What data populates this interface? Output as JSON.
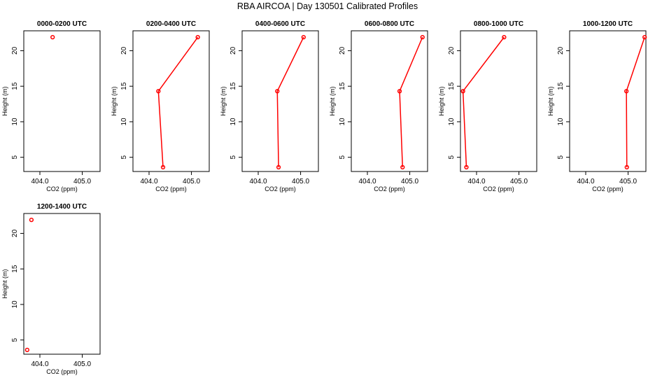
{
  "page": {
    "title": "RBA AIRCOA |  Day 130501  Calibrated Profiles"
  },
  "style": {
    "line_color": "#ff0000",
    "point_color": "#ff0000",
    "axis_color": "#000000",
    "background": "#ffffff"
  },
  "chart_data": [
    {
      "type": "line",
      "title": "0000-0200 UTC",
      "xlabel": "CO2 (ppm)",
      "ylabel": "Height (m)",
      "xlim": [
        403.62,
        405.42
      ],
      "ylim": [
        3,
        22.8
      ],
      "xticks": [
        404.0,
        405.0
      ],
      "xticklabels": [
        "404.0",
        "405.0"
      ],
      "yticks": [
        5,
        10,
        15,
        20
      ],
      "yticklabels": [
        "5",
        "10",
        "15",
        "20"
      ],
      "points": [
        {
          "x": 404.3,
          "y": 21.9
        }
      ],
      "connect": false,
      "grid": false
    },
    {
      "type": "line",
      "title": "0200-0400 UTC",
      "xlabel": "CO2 (ppm)",
      "ylabel": "Height (m)",
      "xlim": [
        403.62,
        405.42
      ],
      "ylim": [
        3,
        22.8
      ],
      "xticks": [
        404.0,
        405.0
      ],
      "xticklabels": [
        "404.0",
        "405.0"
      ],
      "yticks": [
        5,
        10,
        15,
        20
      ],
      "yticklabels": [
        "5",
        "10",
        "15",
        "20"
      ],
      "points": [
        {
          "x": 405.15,
          "y": 21.9
        },
        {
          "x": 404.22,
          "y": 14.3
        },
        {
          "x": 404.33,
          "y": 3.6
        }
      ],
      "connect": true,
      "grid": false
    },
    {
      "type": "line",
      "title": "0400-0600 UTC",
      "xlabel": "CO2 (ppm)",
      "ylabel": "Height (m)",
      "xlim": [
        403.62,
        405.42
      ],
      "ylim": [
        3,
        22.8
      ],
      "xticks": [
        404.0,
        405.0
      ],
      "xticklabels": [
        "404.0",
        "405.0"
      ],
      "yticks": [
        5,
        10,
        15,
        20
      ],
      "yticklabels": [
        "5",
        "10",
        "15",
        "20"
      ],
      "points": [
        {
          "x": 405.07,
          "y": 21.9
        },
        {
          "x": 404.45,
          "y": 14.3
        },
        {
          "x": 404.48,
          "y": 3.6
        }
      ],
      "connect": true,
      "grid": false
    },
    {
      "type": "line",
      "title": "0600-0800 UTC",
      "xlabel": "CO2 (ppm)",
      "ylabel": "Height (m)",
      "xlim": [
        403.62,
        405.42
      ],
      "ylim": [
        3,
        22.8
      ],
      "xticks": [
        404.0,
        405.0
      ],
      "xticklabels": [
        "404.0",
        "405.0"
      ],
      "yticks": [
        5,
        10,
        15,
        20
      ],
      "yticklabels": [
        "5",
        "10",
        "15",
        "20"
      ],
      "points": [
        {
          "x": 405.3,
          "y": 21.9
        },
        {
          "x": 404.76,
          "y": 14.3
        },
        {
          "x": 404.83,
          "y": 3.6
        }
      ],
      "connect": true,
      "grid": false
    },
    {
      "type": "line",
      "title": "0800-1000 UTC",
      "xlabel": "CO2 (ppm)",
      "ylabel": "Height (m)",
      "xlim": [
        403.62,
        405.42
      ],
      "ylim": [
        3,
        22.8
      ],
      "xticks": [
        404.0,
        405.0
      ],
      "xticklabels": [
        "404.0",
        "405.0"
      ],
      "yticks": [
        5,
        10,
        15,
        20
      ],
      "yticklabels": [
        "5",
        "10",
        "15",
        "20"
      ],
      "points": [
        {
          "x": 404.65,
          "y": 21.9
        },
        {
          "x": 403.68,
          "y": 14.3
        },
        {
          "x": 403.76,
          "y": 3.6
        }
      ],
      "connect": true,
      "grid": false
    },
    {
      "type": "line",
      "title": "1000-1200 UTC",
      "xlabel": "CO2 (ppm)",
      "ylabel": "Height (m)",
      "xlim": [
        403.62,
        405.42
      ],
      "ylim": [
        3,
        22.8
      ],
      "xticks": [
        404.0,
        405.0
      ],
      "xticklabels": [
        "404.0",
        "405.0"
      ],
      "yticks": [
        5,
        10,
        15,
        20
      ],
      "yticklabels": [
        "5",
        "10",
        "15",
        "20"
      ],
      "points": [
        {
          "x": 405.39,
          "y": 21.9
        },
        {
          "x": 404.96,
          "y": 14.3
        },
        {
          "x": 404.97,
          "y": 3.6
        }
      ],
      "connect": true,
      "grid": false
    },
    {
      "type": "line",
      "title": "1200-1400 UTC",
      "xlabel": "CO2 (ppm)",
      "ylabel": "Height (m)",
      "xlim": [
        403.62,
        405.42
      ],
      "ylim": [
        3,
        22.8
      ],
      "xticks": [
        404.0,
        405.0
      ],
      "xticklabels": [
        "404.0",
        "405.0"
      ],
      "yticks": [
        5,
        10,
        15,
        20
      ],
      "yticklabels": [
        "5",
        "10",
        "15",
        "20"
      ],
      "points": [
        {
          "x": 403.8,
          "y": 21.9
        },
        {
          "x": 403.7,
          "y": 3.6
        }
      ],
      "connect": false,
      "grid": false
    }
  ]
}
